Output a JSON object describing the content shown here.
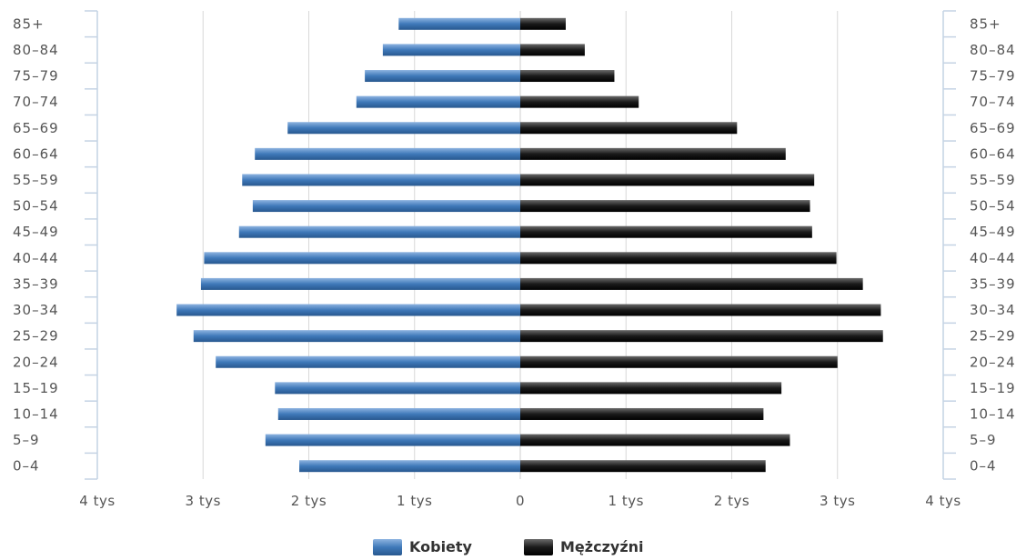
{
  "chart_data": {
    "type": "bar",
    "orientation": "horizontal",
    "categories": [
      "85+",
      "80-84",
      "75-79",
      "70-74",
      "65-69",
      "60-64",
      "55-59",
      "50-54",
      "45-49",
      "40-44",
      "35-39",
      "30-34",
      "25-29",
      "20-24",
      "15-19",
      "10-14",
      "5-9",
      "0-4"
    ],
    "series": [
      {
        "name": "Kobiety",
        "side": "left",
        "color": "#3F79B9",
        "values": [
          1150,
          1300,
          1470,
          1550,
          2200,
          2510,
          2630,
          2530,
          2660,
          2990,
          3020,
          3250,
          3090,
          2880,
          2320,
          2290,
          2410,
          2090
        ]
      },
      {
        "name": "Mężczyźni",
        "side": "right",
        "color": "#1A1A1A",
        "values": [
          430,
          610,
          890,
          1120,
          2050,
          2510,
          2780,
          2740,
          2760,
          2990,
          3240,
          3410,
          3430,
          3000,
          2470,
          2300,
          2550,
          2320
        ]
      }
    ],
    "xlim": [
      -4000,
      4000
    ],
    "x_ticks": [
      -4000,
      -3000,
      -2000,
      -1000,
      0,
      1000,
      2000,
      3000,
      4000
    ],
    "x_tick_labels": [
      "4 tys",
      "3 tys",
      "2 tys",
      "1 tys",
      "0",
      "1 tys",
      "2 tys",
      "3 tys",
      "4 tys"
    ],
    "grid": true,
    "legend_position": "bottom-center"
  }
}
